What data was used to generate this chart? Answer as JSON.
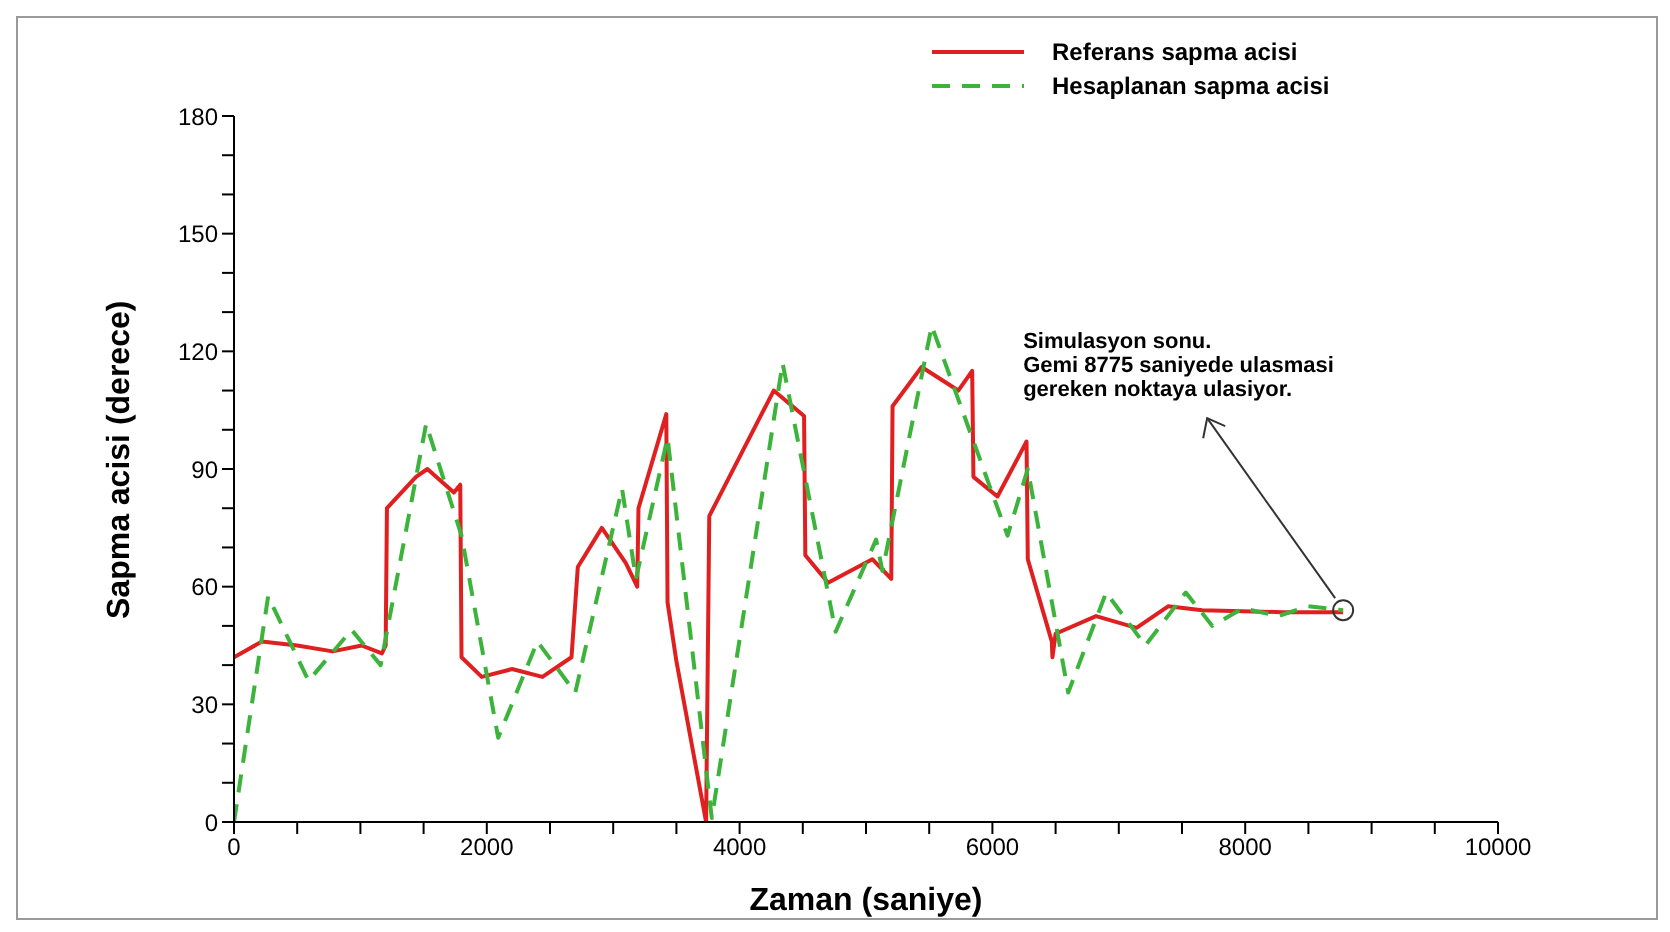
{
  "chart_data": {
    "type": "line",
    "xlabel": "Zaman (saniye)",
    "ylabel": "Sapma acisi (derece)",
    "xlim": [
      0,
      10000
    ],
    "ylim": [
      0,
      180
    ],
    "xticks": [
      0,
      {
        "value": 500,
        "label": null
      },
      {
        "value": 1000,
        "label": null
      },
      {
        "value": 1500,
        "label": null
      },
      2000,
      {
        "value": 2500,
        "label": null
      },
      {
        "value": 3000,
        "label": null
      },
      {
        "value": 3500,
        "label": null
      },
      4000,
      {
        "value": 4500,
        "label": null
      },
      {
        "value": 5000,
        "label": null
      },
      {
        "value": 5500,
        "label": null
      },
      6000,
      {
        "value": 6500,
        "label": null
      },
      {
        "value": 7000,
        "label": null
      },
      {
        "value": 7500,
        "label": null
      },
      8000,
      {
        "value": 8500,
        "label": null
      },
      {
        "value": 9000,
        "label": null
      },
      {
        "value": 9500,
        "label": null
      },
      10000
    ],
    "yticks": [
      0,
      {
        "value": 10,
        "label": null
      },
      {
        "value": 20,
        "label": null
      },
      30,
      {
        "value": 40,
        "label": null
      },
      {
        "value": 50,
        "label": null
      },
      60,
      {
        "value": 70,
        "label": null
      },
      {
        "value": 80,
        "label": null
      },
      90,
      {
        "value": 100,
        "label": null
      },
      {
        "value": 110,
        "label": null
      },
      120,
      {
        "value": 130,
        "label": null
      },
      {
        "value": 140,
        "label": null
      },
      150,
      {
        "value": 160,
        "label": null
      },
      {
        "value": 170,
        "label": null
      },
      180
    ],
    "legend": "top right",
    "series": [
      {
        "name": "Referans sapma acisi",
        "color": "#e02020",
        "line_style": "solid",
        "x": [
          0,
          220,
          500,
          780,
          1010,
          1170,
          1200,
          1210,
          1440,
          1530,
          1740,
          1790,
          1800,
          1960,
          2200,
          2440,
          2670,
          2720,
          2910,
          3100,
          3190,
          3200,
          3420,
          3430,
          3500,
          3735,
          3760,
          4270,
          4510,
          4520,
          4700,
          5050,
          5200,
          5210,
          5440,
          5730,
          5840,
          5850,
          6040,
          6270,
          6280,
          6470,
          6475,
          6500,
          6820,
          7140,
          7390,
          7660,
          8290,
          8775
        ],
        "values": [
          42,
          46,
          45,
          43.5,
          45,
          43,
          45,
          80,
          88,
          90,
          84,
          86,
          42,
          37,
          39,
          37,
          42,
          65,
          75,
          66,
          60,
          80,
          104,
          56,
          41,
          0,
          78,
          110,
          103.5,
          68,
          61,
          67,
          62,
          106,
          116,
          110,
          115,
          88,
          83,
          97,
          67,
          46,
          42,
          48,
          52.5,
          49.5,
          55,
          54,
          53.5,
          53.5
        ]
      },
      {
        "name": "Hesaplanan sapma acisi",
        "color": "#3cb43c",
        "line_style": "dashed",
        "x": [
          0,
          270,
          590,
          930,
          1160,
          1520,
          1800,
          2090,
          2400,
          2700,
          3070,
          3180,
          3430,
          3780,
          4340,
          4760,
          5080,
          5130,
          5520,
          6120,
          6280,
          6600,
          6900,
          7210,
          7530,
          7740,
          7980,
          8260,
          8500,
          8775
        ],
        "values": [
          0,
          57.5,
          36,
          49,
          40,
          101.5,
          73,
          21.5,
          46,
          33,
          85,
          62,
          98,
          1,
          117,
          48.5,
          72,
          64,
          126.5,
          73,
          90,
          33,
          58.5,
          45,
          58.5,
          50,
          54.5,
          52.5,
          55,
          54
        ]
      }
    ],
    "annotations": [
      {
        "text": "Simulasyon sonu.\nGemi 8775 saniyede ulasmasi\ngereken noktaya ulasiyor.",
        "x": 8775,
        "y": 54
      }
    ]
  }
}
